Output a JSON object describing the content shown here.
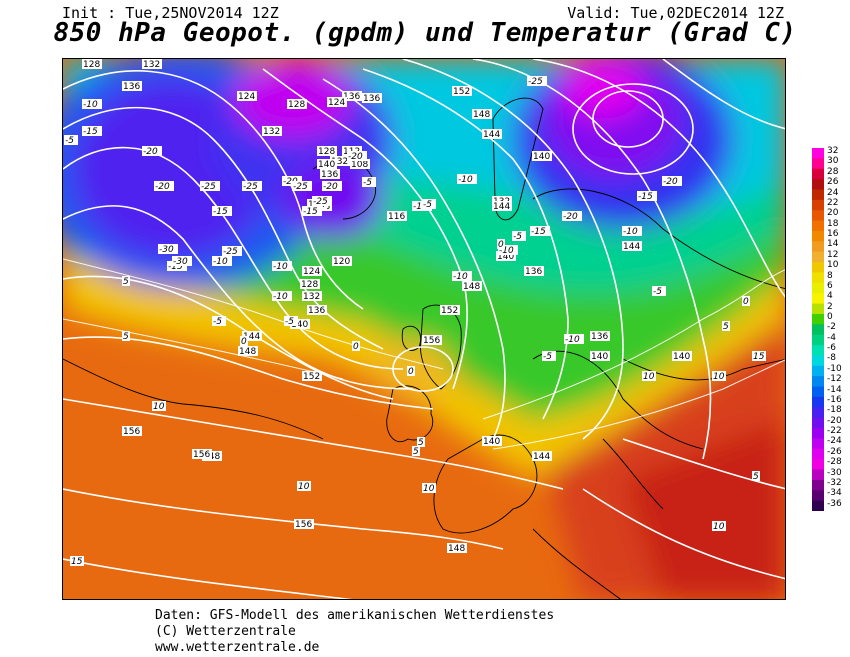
{
  "header": {
    "init": "Init : Tue,25NOV2014 12Z",
    "valid": "Valid: Tue,02DEC2014 12Z",
    "title": "850 hPa Geopot. (gpdm) und Temperatur (Grad C)"
  },
  "legend": {
    "labels": [
      "32",
      "30",
      "28",
      "26",
      "24",
      "22",
      "20",
      "18",
      "16",
      "14",
      "12",
      "10",
      "8",
      "6",
      "4",
      "2",
      "0",
      "-2",
      "-4",
      "-6",
      "-8",
      "-10",
      "-12",
      "-14",
      "-16",
      "-18",
      "-20",
      "-22",
      "-24",
      "-26",
      "-28",
      "-30",
      "-32",
      "-34",
      "-36"
    ],
    "colors": [
      "#ff00e0",
      "#ff0090",
      "#d8003c",
      "#b01010",
      "#c02800",
      "#d84000",
      "#e85800",
      "#f07000",
      "#f08800",
      "#f09c20",
      "#f0b030",
      "#f0c800",
      "#f0e000",
      "#e8f000",
      "#f8f400",
      "#b8e000",
      "#40d000",
      "#00c060",
      "#00d080",
      "#00e0b0",
      "#00d8e0",
      "#00b0f0",
      "#0088f0",
      "#0060f0",
      "#1838f0",
      "#4820f0",
      "#7010f0",
      "#9c00f0",
      "#c000f0",
      "#e000f0",
      "#f000e0",
      "#b800c0",
      "#800090",
      "#580070",
      "#300050"
    ]
  },
  "map": {
    "geopotential_labels": [
      "128",
      "132",
      "136",
      "124",
      "128",
      "132",
      "136",
      "152",
      "148",
      "144",
      "140",
      "132",
      "136",
      "124",
      "128",
      "132",
      "136",
      "140",
      "128",
      "124",
      "112",
      "108",
      "116",
      "120",
      "124",
      "128",
      "132",
      "136",
      "140",
      "144",
      "148",
      "152",
      "156",
      "148",
      "140",
      "136",
      "140",
      "144",
      "148",
      "152",
      "156",
      "156",
      "156",
      "148",
      "144",
      "140",
      "136",
      "140",
      "144"
    ],
    "temperature_labels": [
      "-10",
      "-15",
      "-20",
      "-25",
      "-15",
      "-10",
      "-5",
      "-20",
      "-25",
      "-30",
      "-20",
      "-25",
      "-15",
      "-10",
      "-5",
      "0",
      "-5",
      "-10",
      "-15",
      "-20",
      "-25",
      "-30",
      "-25",
      "-20",
      "-15",
      "-10",
      "-5",
      "0",
      "5",
      "10",
      "-5",
      "-10",
      "-15",
      "-20",
      "-10",
      "-5",
      "0",
      "5",
      "10",
      "15",
      "5",
      "10",
      "0",
      "5",
      "10",
      "-5",
      "-10",
      "5",
      "10",
      "15",
      "5",
      "10",
      "0",
      "-5",
      "-10",
      "-25",
      "-20",
      "-15"
    ]
  },
  "footer": {
    "line1": "Daten: GFS-Modell des amerikanischen Wetterdienstes",
    "line2": "(C) Wetterzentrale",
    "line3": "www.wetterzentrale.de"
  }
}
